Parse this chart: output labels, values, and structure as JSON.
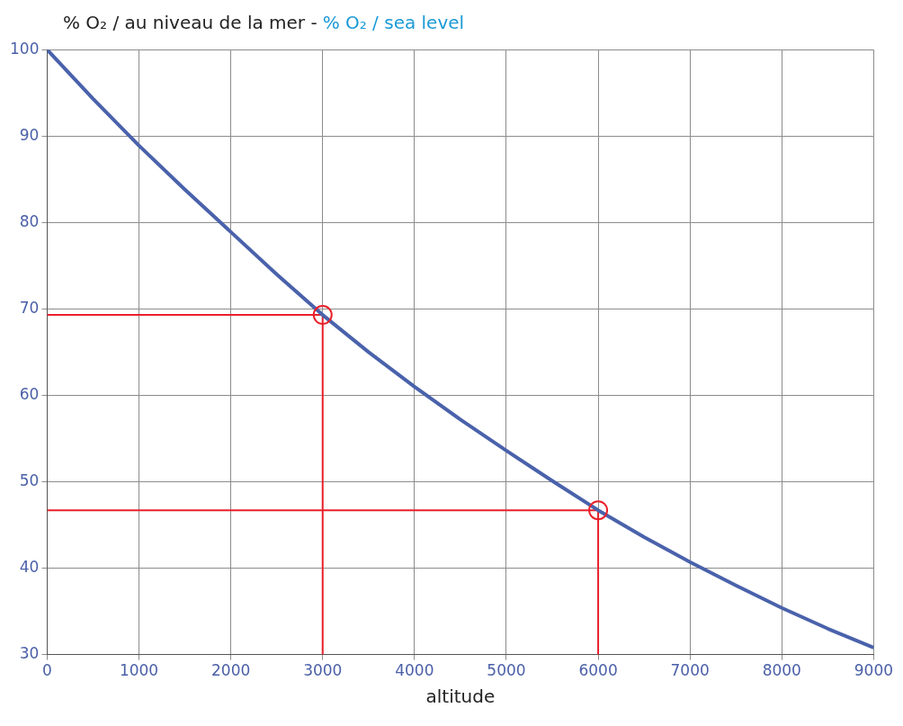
{
  "chart_data": {
    "type": "line",
    "title": "% O₂ / au niveau de la mer -",
    "subtitle": "% O₂ / sea level",
    "xlabel": "altitude",
    "xlim": [
      0,
      9000
    ],
    "xticks": [
      0,
      1000,
      2000,
      3000,
      4000,
      5000,
      6000,
      7000,
      8000,
      9000
    ],
    "ylim": [
      30,
      100
    ],
    "yticks": [
      30,
      40,
      50,
      60,
      70,
      80,
      90,
      100
    ],
    "grid": true,
    "legend": false,
    "series": [
      {
        "color": "#4a62ab",
        "marker": "none",
        "x": [
          0,
          500,
          1000,
          1500,
          2000,
          2500,
          3000,
          3500,
          4000,
          4500,
          5000,
          5500,
          6000,
          6500,
          7000,
          7500,
          8000,
          8500,
          9000
        ],
        "values": [
          100,
          94.3,
          88.9,
          83.8,
          78.9,
          74.0,
          69.3,
          65.0,
          61.0,
          57.2,
          53.6,
          50.1,
          46.7,
          43.6,
          40.7,
          38.0,
          35.4,
          33.0,
          30.8
        ]
      },
      {
        "color": "#e8202a",
        "marker": "none",
        "x": [
          0,
          3000,
          3000
        ],
        "values": [
          69.3,
          69.3,
          30
        ]
      },
      {
        "color": "#e8202a",
        "marker": "none",
        "x": [
          0,
          6000,
          6000
        ],
        "values": [
          46.7,
          46.7,
          30
        ]
      },
      {
        "type": "scatter",
        "color": "#e8202a",
        "marker": "circle",
        "x": [
          3000,
          6000
        ],
        "values": [
          69.3,
          46.7
        ]
      }
    ]
  }
}
